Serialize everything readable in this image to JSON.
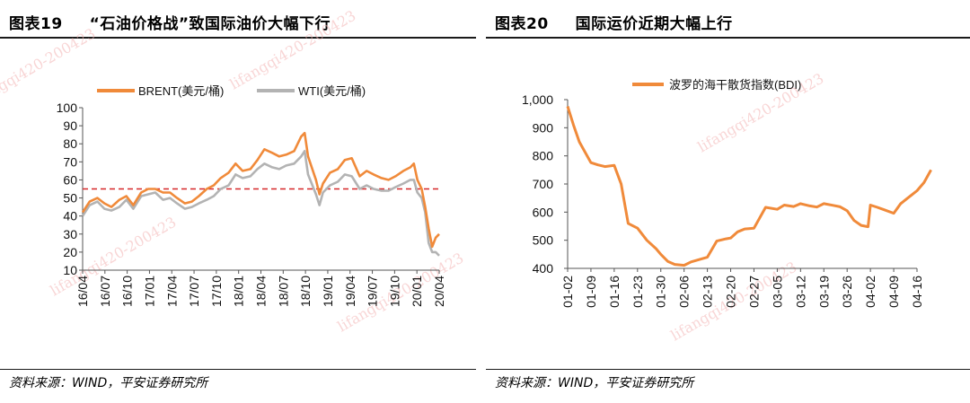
{
  "figures": [
    {
      "number": "图表19",
      "title": "“石油价格战”致国际油价大幅下行",
      "source": "资料来源：WIND，平安证券研究所",
      "watermark": "lifangqi420-200423"
    },
    {
      "number": "图表20",
      "title": "国际运价近期大幅上行",
      "source": "资料来源：WIND，平安证券研究所",
      "watermark": "lifangqi420-200423"
    }
  ],
  "chart_data": [
    {
      "type": "line",
      "title": "“石油价格战”致国际油价大幅下行",
      "xlabel": "",
      "ylabel": "",
      "ylim": [
        10,
        100
      ],
      "yticks": [
        10,
        20,
        30,
        40,
        50,
        60,
        70,
        80,
        90,
        100
      ],
      "xlim": [
        2016.25,
        2020.33
      ],
      "categories": [
        "16/04",
        "16/07",
        "16/10",
        "17/01",
        "17/04",
        "17/07",
        "17/10",
        "18/01",
        "18/04",
        "18/07",
        "18/10",
        "19/01",
        "19/04",
        "19/07",
        "19/10",
        "20/01",
        "20/04"
      ],
      "reference_line": {
        "value": 55,
        "style": "dashed",
        "color": "#d62728"
      },
      "legend_position": "top",
      "series": [
        {
          "name": "BRENT(美元/桶)",
          "color": "#f08a3a",
          "x": [
            2016.25,
            2016.33,
            2016.42,
            2016.5,
            2016.58,
            2016.67,
            2016.75,
            2016.83,
            2016.92,
            2017.0,
            2017.08,
            2017.17,
            2017.25,
            2017.33,
            2017.42,
            2017.5,
            2017.58,
            2017.67,
            2017.75,
            2017.83,
            2017.92,
            2018.0,
            2018.08,
            2018.17,
            2018.25,
            2018.33,
            2018.42,
            2018.5,
            2018.58,
            2018.67,
            2018.75,
            2018.79,
            2018.83,
            2018.92,
            2018.96,
            2019.0,
            2019.08,
            2019.17,
            2019.25,
            2019.33,
            2019.42,
            2019.5,
            2019.58,
            2019.67,
            2019.75,
            2019.83,
            2019.92,
            2020.0,
            2020.04,
            2020.08,
            2020.13,
            2020.17,
            2020.21,
            2020.25,
            2020.29,
            2020.33
          ],
          "values": [
            42,
            48,
            50,
            47,
            45,
            49,
            51,
            46,
            53,
            55,
            55,
            53,
            53,
            50,
            47,
            48,
            51,
            55,
            57,
            61,
            64,
            69,
            65,
            66,
            71,
            77,
            75,
            73,
            74,
            76,
            84,
            86,
            73,
            60,
            52,
            58,
            64,
            66,
            71,
            72,
            62,
            65,
            63,
            61,
            60,
            62,
            65,
            67,
            69,
            60,
            55,
            45,
            33,
            23,
            28,
            30
          ]
        },
        {
          "name": "WTI(美元/桶)",
          "color": "#b3b3b3",
          "x": [
            2016.25,
            2016.33,
            2016.42,
            2016.5,
            2016.58,
            2016.67,
            2016.75,
            2016.83,
            2016.92,
            2017.0,
            2017.08,
            2017.17,
            2017.25,
            2017.33,
            2017.42,
            2017.5,
            2017.58,
            2017.67,
            2017.75,
            2017.83,
            2017.92,
            2018.0,
            2018.08,
            2018.17,
            2018.25,
            2018.33,
            2018.42,
            2018.5,
            2018.58,
            2018.67,
            2018.75,
            2018.79,
            2018.83,
            2018.92,
            2018.96,
            2019.0,
            2019.08,
            2019.17,
            2019.25,
            2019.33,
            2019.42,
            2019.5,
            2019.58,
            2019.67,
            2019.75,
            2019.83,
            2019.92,
            2020.0,
            2020.04,
            2020.08,
            2020.13,
            2020.17,
            2020.21,
            2020.25,
            2020.29,
            2020.33
          ],
          "values": [
            40,
            46,
            48,
            44,
            43,
            45,
            49,
            44,
            51,
            52,
            53,
            49,
            50,
            47,
            44,
            45,
            47,
            49,
            51,
            55,
            57,
            63,
            61,
            62,
            66,
            69,
            67,
            66,
            68,
            69,
            73,
            76,
            63,
            52,
            46,
            53,
            57,
            59,
            63,
            62,
            55,
            57,
            55,
            54,
            54,
            56,
            58,
            60,
            60,
            53,
            50,
            42,
            25,
            20,
            20,
            18
          ]
        }
      ]
    },
    {
      "type": "line",
      "title": "国际运价近期大幅上行",
      "xlabel": "",
      "ylabel": "",
      "ylim": [
        400,
        1000
      ],
      "yticks": [
        400,
        500,
        600,
        700,
        800,
        900,
        1000
      ],
      "ytick_labels": [
        "400",
        "500",
        "600",
        "700",
        "800",
        "900",
        "1,000"
      ],
      "categories": [
        "01-02",
        "01-09",
        "01-16",
        "01-23",
        "01-30",
        "02-06",
        "02-13",
        "02-20",
        "02-27",
        "03-05",
        "03-12",
        "03-19",
        "03-26",
        "04-02",
        "04-09",
        "04-16"
      ],
      "legend_position": "top",
      "series": [
        {
          "name": "波罗的海干散货指数(BDI)",
          "color": "#f08a3a",
          "x": [
            0,
            0.25,
            0.5,
            1,
            1.3,
            1.6,
            2,
            2.3,
            2.6,
            3,
            3.4,
            3.8,
            4,
            4.3,
            4.6,
            5,
            5.3,
            5.6,
            6,
            6.4,
            6.8,
            7,
            7.3,
            7.6,
            8,
            8.5,
            9,
            9.3,
            9.7,
            10,
            10.4,
            10.7,
            11,
            11.4,
            11.7,
            12,
            12.3,
            12.6,
            12.9,
            13,
            13.3,
            13.6,
            14,
            14.3,
            14.6,
            15,
            15.3,
            15.6
          ],
          "values": [
            976,
            910,
            850,
            776,
            768,
            762,
            766,
            700,
            560,
            543,
            500,
            470,
            450,
            425,
            414,
            411,
            423,
            430,
            440,
            497,
            505,
            508,
            530,
            540,
            543,
            617,
            610,
            625,
            620,
            630,
            622,
            618,
            630,
            624,
            619,
            605,
            570,
            553,
            548,
            625,
            617,
            608,
            596,
            630,
            650,
            676,
            705,
            750
          ]
        }
      ]
    }
  ]
}
